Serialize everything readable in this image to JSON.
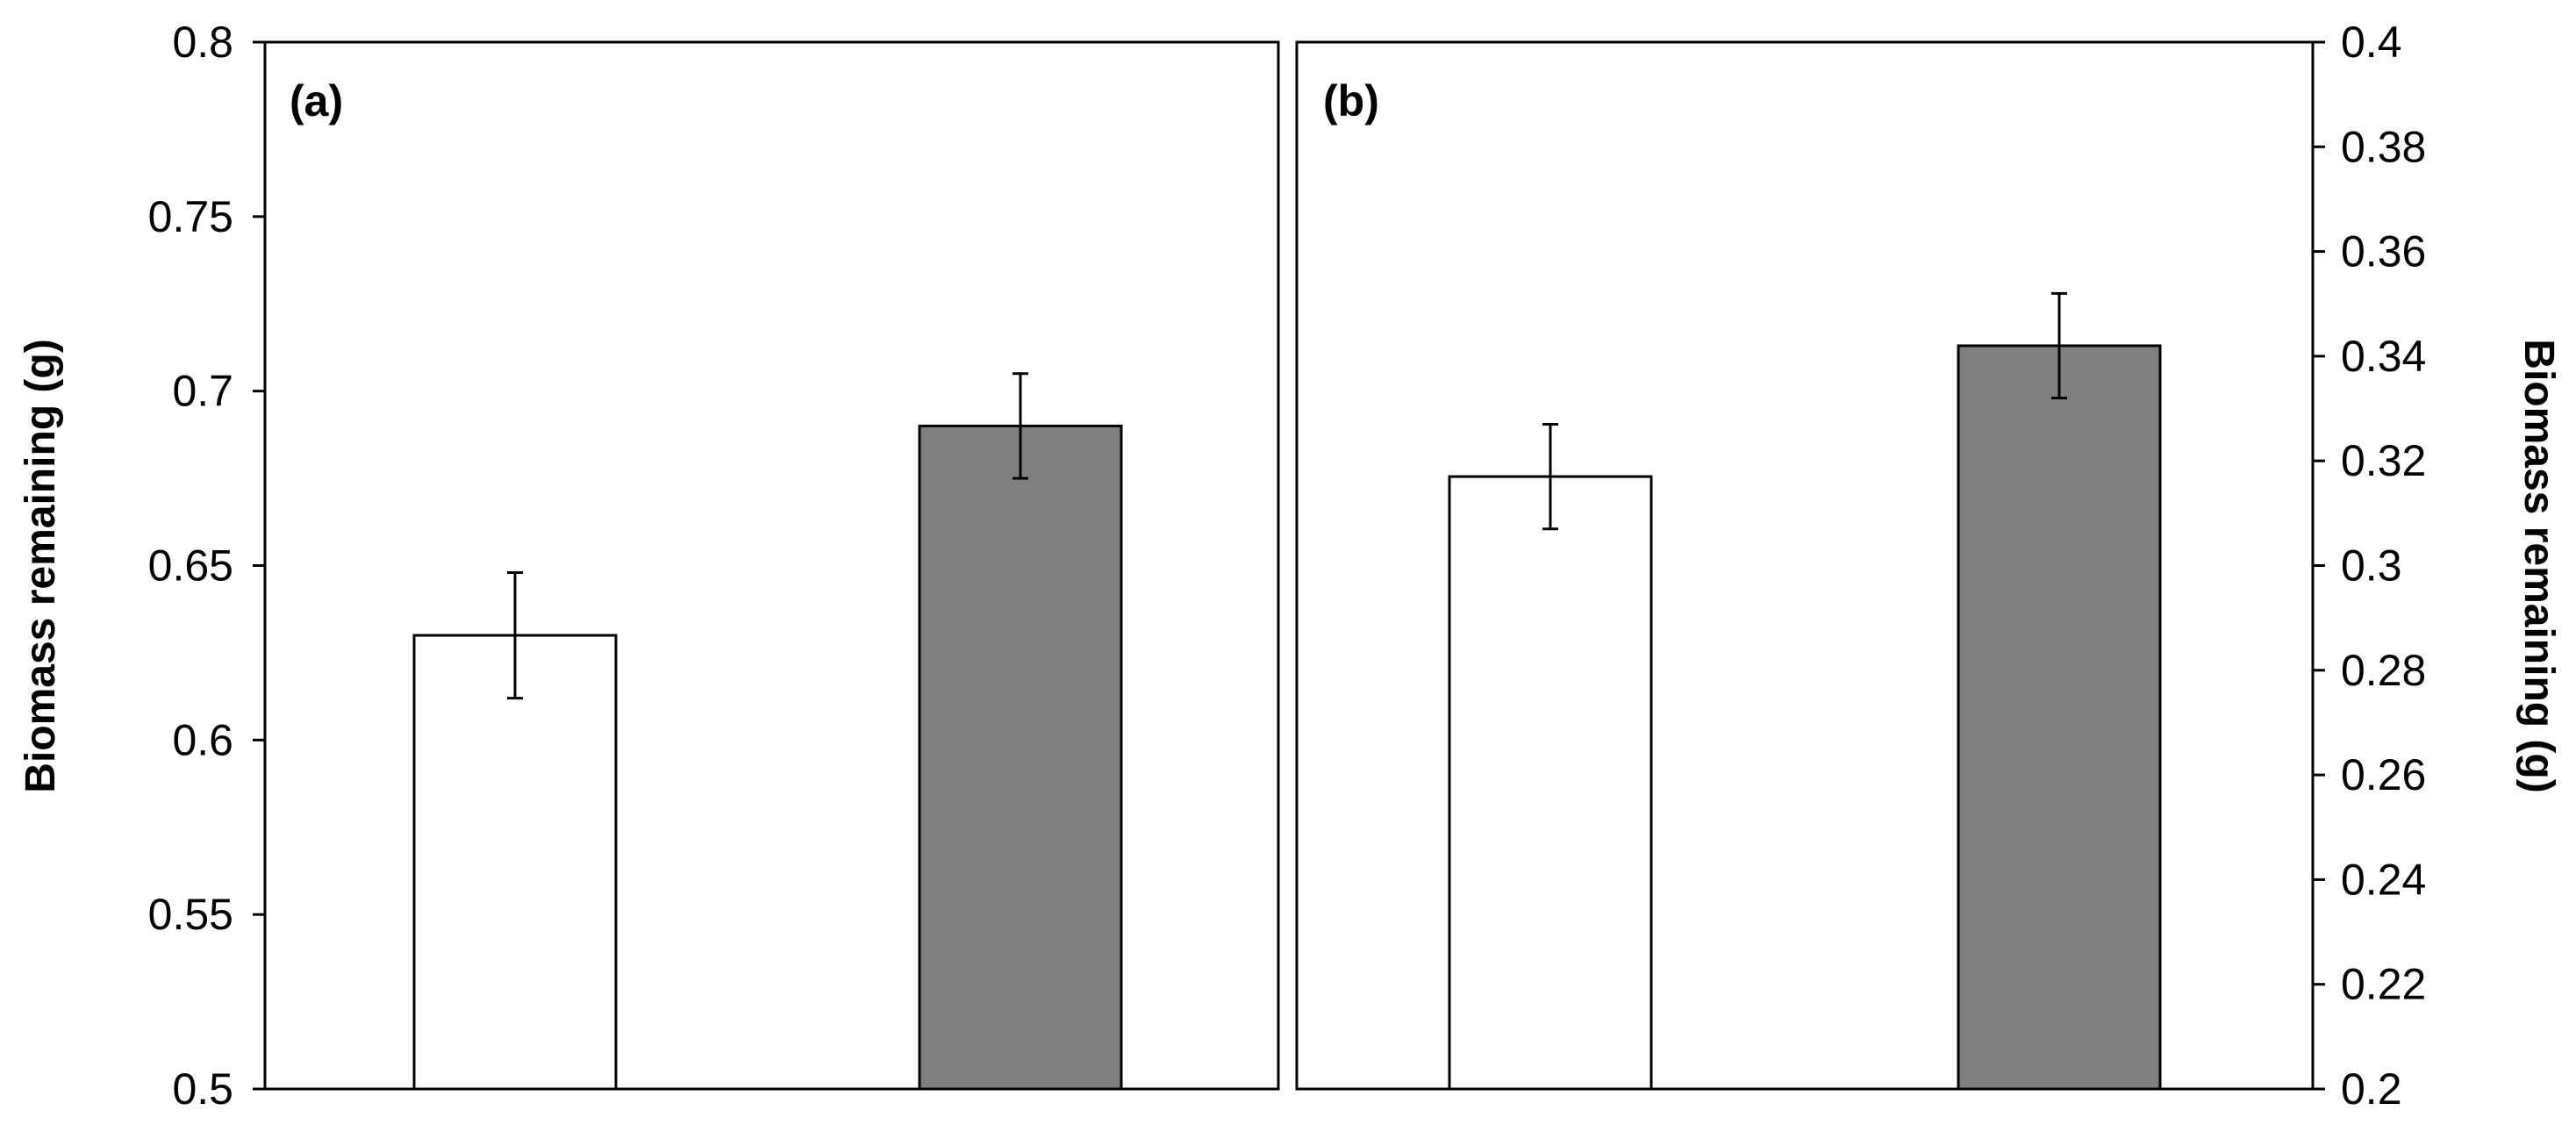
{
  "chart_data": [
    {
      "type": "bar",
      "panel_label": "(a)",
      "ylabel": "Biomass remaining (g)",
      "y_axis_side": "left",
      "ylim": [
        0.5,
        0.8
      ],
      "yticks": [
        0.5,
        0.55,
        0.6,
        0.65,
        0.7,
        0.75,
        0.8
      ],
      "ytick_labels": [
        "0.5",
        "0.55",
        "0.6",
        "0.65",
        "0.7",
        "0.75",
        "0.8"
      ],
      "grid": false,
      "bars": [
        {
          "value": 0.63,
          "error": 0.018,
          "fill": "#ffffff"
        },
        {
          "value": 0.69,
          "error": 0.015,
          "fill": "#7f7f7f"
        }
      ]
    },
    {
      "type": "bar",
      "panel_label": "(b)",
      "ylabel": "Biomass remaining (g)",
      "y_axis_side": "right",
      "ylim": [
        0.2,
        0.4
      ],
      "yticks": [
        0.2,
        0.22,
        0.24,
        0.26,
        0.28,
        0.3,
        0.32,
        0.34,
        0.36,
        0.38,
        0.4
      ],
      "ytick_labels": [
        "0.2",
        "0.22",
        "0.24",
        "0.26",
        "0.28",
        "0.3",
        "0.32",
        "0.34",
        "0.36",
        "0.38",
        "0.4"
      ],
      "grid": false,
      "bars": [
        {
          "value": 0.317,
          "error": 0.01,
          "fill": "#ffffff"
        },
        {
          "value": 0.342,
          "error": 0.01,
          "fill": "#7f7f7f"
        }
      ]
    }
  ]
}
